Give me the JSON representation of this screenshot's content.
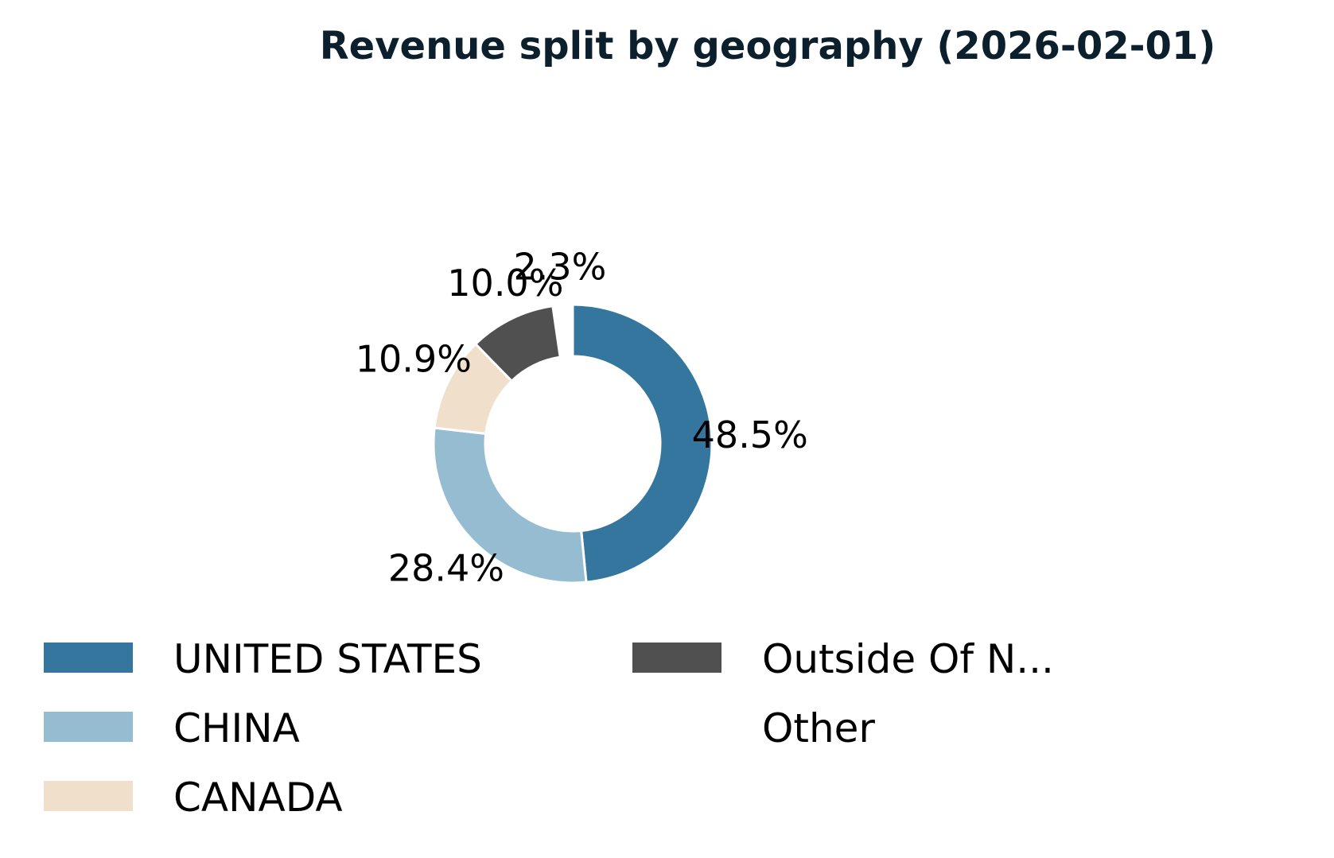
{
  "chart_data": {
    "type": "pie",
    "subtype": "donut",
    "title": "Revenue split by geography (2026-02-01)",
    "categories": [
      "UNITED STATES",
      "CHINA",
      "CANADA",
      "Outside Of N...",
      "Other"
    ],
    "values": [
      48.5,
      28.4,
      10.9,
      10.0,
      2.3
    ],
    "value_labels": [
      "48.5%",
      "28.4%",
      "10.9%",
      "10.0%",
      "2.3%"
    ],
    "colors": [
      "#34769e",
      "#95bcd1",
      "#f0e0cb",
      "#505050",
      "#ffffff"
    ],
    "exploded_slice": "Other",
    "legend": {
      "placement": "bottom-left",
      "columns": 2,
      "entries": [
        "UNITED STATES",
        "CHINA",
        "CANADA",
        "Outside Of N...",
        "Other"
      ]
    }
  }
}
